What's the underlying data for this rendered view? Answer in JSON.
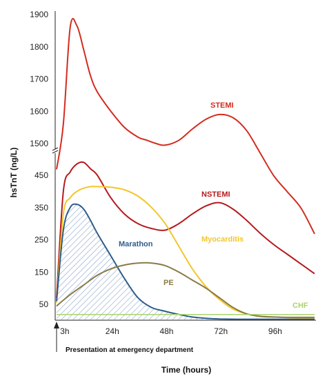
{
  "chart_data": {
    "type": "line",
    "xlabel": "Time (hours)",
    "ylabel": "hsTnT (ng/L)",
    "annotation": "Presentation at emergency department",
    "x_ticks": [
      {
        "label": "3h",
        "x": 3
      },
      {
        "label": "24h",
        "x": 24
      },
      {
        "label": "48h",
        "x": 48
      },
      {
        "label": "72h",
        "x": 72
      },
      {
        "label": "96h",
        "x": 96
      }
    ],
    "upper_y_ticks": [
      1500,
      1600,
      1700,
      1800,
      1900
    ],
    "lower_y_ticks": [
      50,
      150,
      250,
      350,
      450
    ],
    "axis_break": "between 450 and 1500",
    "series": [
      {
        "name": "STEMI",
        "color": "#d42a1e",
        "panel": "upper",
        "x": [
          0,
          3,
          6,
          9,
          12,
          15,
          18,
          24,
          30,
          36,
          40,
          44,
          48,
          54,
          60,
          66,
          72,
          78,
          84,
          90,
          96,
          102,
          108,
          114
        ],
        "y": [
          1420,
          1560,
          1860,
          1865,
          1790,
          1710,
          1660,
          1600,
          1550,
          1520,
          1510,
          1500,
          1495,
          1510,
          1545,
          1575,
          1590,
          1580,
          1540,
          1470,
          1400,
          1350,
          1300,
          1220
        ]
      },
      {
        "name": "NSTEMI",
        "color": "#b5191d",
        "panel": "lower",
        "x": [
          0,
          3,
          6,
          9,
          12,
          15,
          18,
          24,
          30,
          36,
          42,
          48,
          54,
          60,
          66,
          72,
          78,
          84,
          90,
          96,
          102,
          108,
          114
        ],
        "y": [
          70,
          400,
          460,
          485,
          490,
          470,
          450,
          380,
          330,
          300,
          285,
          280,
          300,
          330,
          355,
          365,
          345,
          310,
          270,
          235,
          205,
          175,
          145
        ]
      },
      {
        "name": "Myocarditis",
        "color": "#f2c62a",
        "panel": "lower",
        "x": [
          0,
          3,
          6,
          9,
          12,
          15,
          18,
          24,
          30,
          36,
          42,
          48,
          54,
          60,
          66,
          72,
          78,
          84,
          90,
          96,
          102,
          108,
          114
        ],
        "y": [
          55,
          330,
          380,
          400,
          410,
          415,
          415,
          413,
          405,
          385,
          350,
          300,
          230,
          160,
          105,
          65,
          35,
          20,
          13,
          10,
          8,
          7,
          7
        ]
      },
      {
        "name": "Marathon",
        "color": "#2f5d8a",
        "panel": "lower",
        "x": [
          0,
          3,
          6,
          9,
          12,
          15,
          18,
          24,
          30,
          36,
          42,
          48,
          54,
          60,
          66,
          72,
          80,
          90,
          100,
          114
        ],
        "y": [
          60,
          280,
          350,
          360,
          345,
          310,
          270,
          200,
          130,
          70,
          40,
          28,
          18,
          10,
          6,
          4,
          3,
          3,
          3,
          3
        ]
      },
      {
        "name": "PE",
        "color": "#8a7a46",
        "panel": "lower",
        "x": [
          0,
          6,
          12,
          18,
          24,
          30,
          36,
          42,
          48,
          54,
          60,
          66,
          72,
          78,
          84,
          90,
          96,
          102,
          108,
          114
        ],
        "y": [
          45,
          80,
          110,
          140,
          160,
          172,
          178,
          178,
          170,
          150,
          125,
          100,
          70,
          40,
          20,
          12,
          10,
          9,
          9,
          9
        ]
      },
      {
        "name": "CHF",
        "color": "#a9d36c",
        "panel": "lower",
        "x": [
          0,
          114
        ],
        "y": [
          18,
          18
        ]
      }
    ]
  }
}
